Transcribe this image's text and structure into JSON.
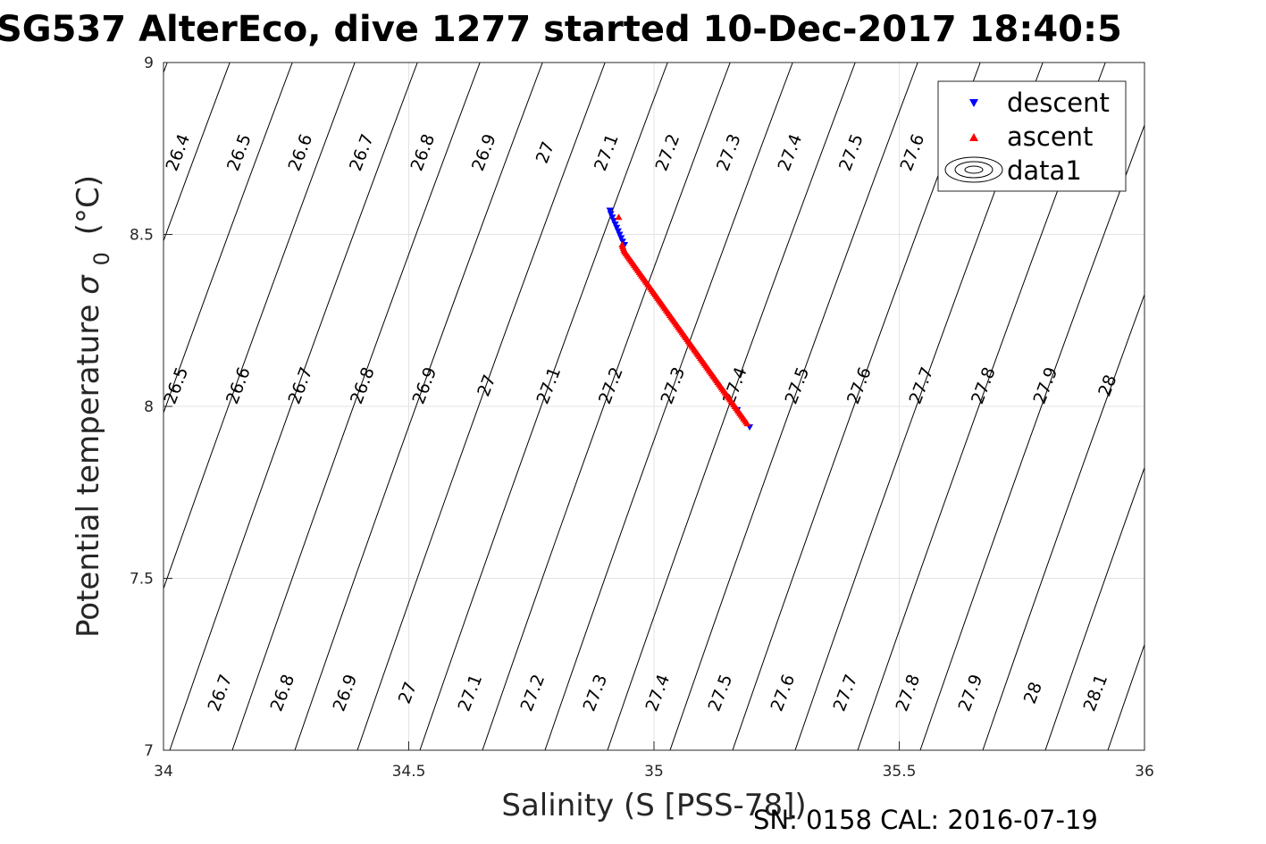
{
  "chart_data": {
    "type": "scatter",
    "title": "SG537 AlterEco, dive 1277 started 10-Dec-2017 18:40:5",
    "xlabel": "Salinity (S [PSS-78])",
    "ylabel": "Potential temperature",
    "ylabel_symbol": "σ",
    "ylabel_subscript": "0",
    "ylabel_unit": "(°C)",
    "xlim": [
      34,
      36
    ],
    "ylim": [
      7,
      9
    ],
    "x_ticks": [
      "34",
      "34.5",
      "35",
      "35.5",
      "36"
    ],
    "x_tick_values": [
      34,
      34.5,
      35,
      35.5,
      36
    ],
    "y_ticks": [
      "7",
      "7.5",
      "8",
      "8.5",
      "9"
    ],
    "y_tick_values": [
      7,
      7.5,
      8,
      8.5,
      9
    ],
    "grid": true,
    "legend_position": "top-right",
    "footer": "SN: 0158  CAL: 2016-07-19",
    "contours": {
      "levels_top": [
        "26.4",
        "26.5",
        "26.6",
        "26.7",
        "26.8",
        "26.9",
        "27",
        "27.1",
        "27.2",
        "27.3",
        "27.4",
        "27.5",
        "27.6"
      ],
      "levels_middle": [
        "26.5",
        "26.6",
        "26.7",
        "26.8",
        "26.9",
        "27",
        "27.1",
        "27.2",
        "27.3",
        "27.4",
        "27.5",
        "27.6",
        "27.7",
        "27.8",
        "27.9",
        "28"
      ],
      "levels_bottom": [
        "26.7",
        "26.8",
        "26.9",
        "27",
        "27.1",
        "27.2",
        "27.3",
        "27.4",
        "27.5",
        "27.6",
        "27.7",
        "27.8",
        "27.9",
        "28",
        "28.1"
      ]
    },
    "series": [
      {
        "name": "descent",
        "marker": "triangle-down",
        "color": "#0000ff",
        "x": [
          34.91,
          34.912,
          34.915,
          34.918,
          34.921,
          34.924,
          34.927,
          34.93,
          34.933,
          34.936,
          34.94,
          35.17,
          35.195
        ],
        "y": [
          8.57,
          8.56,
          8.55,
          8.54,
          8.53,
          8.52,
          8.51,
          8.5,
          8.49,
          8.48,
          8.47,
          7.99,
          7.94
        ]
      },
      {
        "name": "ascent",
        "marker": "triangle-up",
        "color": "#ff0000",
        "x": [
          34.928,
          34.935,
          34.94,
          34.95,
          34.96,
          34.97,
          34.98,
          34.99,
          35.0,
          35.01,
          35.02,
          35.03,
          35.04,
          35.05,
          35.06,
          35.07,
          35.08,
          35.09,
          35.1,
          35.11,
          35.12,
          35.13,
          35.14,
          35.15,
          35.16,
          35.17,
          35.18,
          35.19
        ],
        "y": [
          8.55,
          8.47,
          8.45,
          8.43,
          8.41,
          8.39,
          8.37,
          8.35,
          8.33,
          8.31,
          8.29,
          8.27,
          8.25,
          8.23,
          8.21,
          8.19,
          8.17,
          8.15,
          8.13,
          8.11,
          8.09,
          8.07,
          8.05,
          8.03,
          8.01,
          7.99,
          7.97,
          7.95
        ]
      },
      {
        "name": "data1",
        "marker": "contour"
      }
    ]
  }
}
